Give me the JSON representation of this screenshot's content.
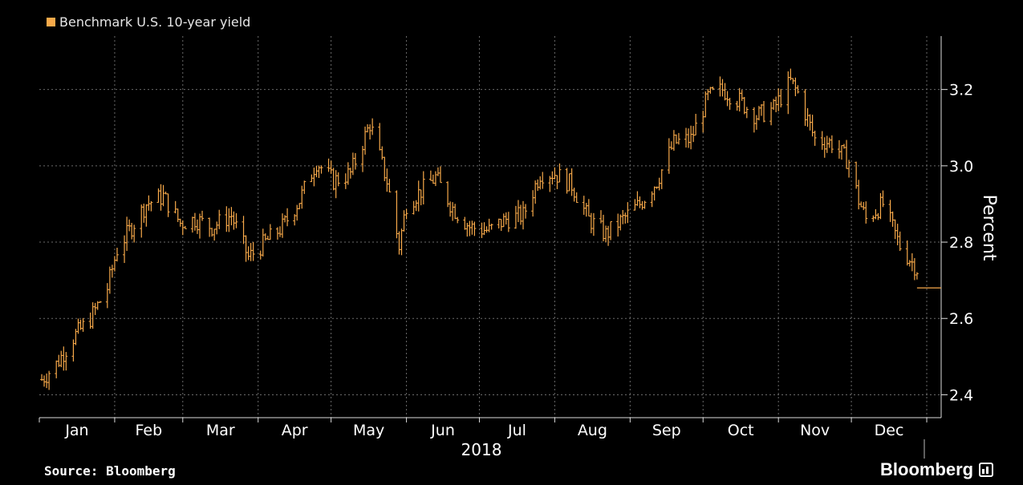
{
  "legend": {
    "label": "Benchmark U.S. 10-year yield",
    "color": "#f7a94a"
  },
  "footer": {
    "source": "Source: Bloomberg",
    "brand": "Bloomberg",
    "brand_icon": "bloomberg-terminal-icon"
  },
  "chart_data": {
    "type": "line",
    "style": "high-low bars (daily)",
    "year_label": "2018",
    "xlabel": "",
    "ylabel": "Percent",
    "ylim": [
      2.34,
      3.34
    ],
    "y_ticks": [
      2.4,
      2.6,
      2.8,
      3.0,
      3.2
    ],
    "y_tick_labels": [
      "2.4",
      "2.6",
      "2.8",
      "3.0",
      "3.2"
    ],
    "months": [
      "Jan",
      "Feb",
      "Mar",
      "Apr",
      "May",
      "Jun",
      "Jul",
      "Aug",
      "Sep",
      "Oct",
      "Nov",
      "Dec"
    ],
    "grid": true,
    "y_axis_side": "right",
    "series": [
      {
        "name": "Benchmark U.S. 10-year yield",
        "color": "#f7a94a",
        "x": [
          "2018-01-02",
          "2018-01-08",
          "2018-01-15",
          "2018-01-22",
          "2018-01-29",
          "2018-02-02",
          "2018-02-09",
          "2018-02-14",
          "2018-02-21",
          "2018-02-28",
          "2018-03-06",
          "2018-03-13",
          "2018-03-21",
          "2018-03-28",
          "2018-04-04",
          "2018-04-11",
          "2018-04-18",
          "2018-04-25",
          "2018-05-02",
          "2018-05-09",
          "2018-05-17",
          "2018-05-24",
          "2018-05-29",
          "2018-06-01",
          "2018-06-08",
          "2018-06-13",
          "2018-06-20",
          "2018-06-27",
          "2018-07-05",
          "2018-07-12",
          "2018-07-19",
          "2018-07-26",
          "2018-08-01",
          "2018-08-08",
          "2018-08-15",
          "2018-08-22",
          "2018-08-29",
          "2018-09-05",
          "2018-09-12",
          "2018-09-19",
          "2018-09-26",
          "2018-10-03",
          "2018-10-09",
          "2018-10-16",
          "2018-10-23",
          "2018-10-30",
          "2018-11-06",
          "2018-11-09",
          "2018-11-16",
          "2018-11-23",
          "2018-11-30",
          "2018-12-04",
          "2018-12-07",
          "2018-12-14",
          "2018-12-21",
          "2018-12-28",
          "2018-12-31"
        ],
        "y": [
          2.44,
          2.48,
          2.55,
          2.6,
          2.68,
          2.78,
          2.85,
          2.9,
          2.92,
          2.85,
          2.86,
          2.84,
          2.87,
          2.76,
          2.8,
          2.84,
          2.91,
          3.01,
          2.96,
          2.98,
          3.11,
          2.96,
          2.79,
          2.9,
          2.94,
          2.97,
          2.89,
          2.84,
          2.83,
          2.86,
          2.87,
          2.98,
          2.98,
          2.95,
          2.86,
          2.82,
          2.86,
          2.9,
          2.96,
          3.06,
          3.07,
          3.18,
          3.2,
          3.17,
          3.13,
          3.15,
          3.22,
          3.19,
          3.07,
          3.06,
          3.01,
          2.91,
          2.86,
          2.9,
          2.79,
          2.73,
          2.68
        ]
      }
    ]
  }
}
